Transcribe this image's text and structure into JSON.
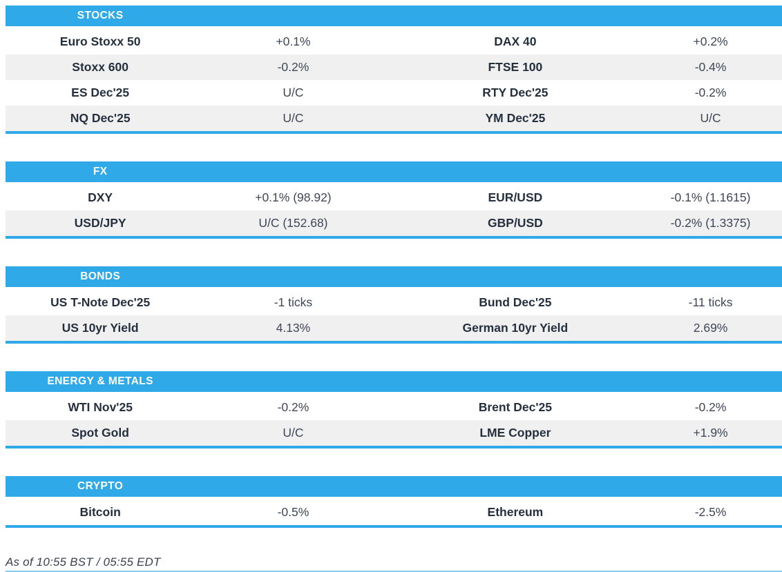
{
  "chart_data": {
    "type": "table",
    "columns": [
      "instrument",
      "change",
      "instrument",
      "change"
    ],
    "sections": [
      {
        "id": "stocks",
        "title": "STOCKS",
        "rows": [
          [
            "Euro Stoxx 50",
            "+0.1%",
            "DAX 40",
            "+0.2%"
          ],
          [
            "Stoxx 600",
            "-0.2%",
            "FTSE 100",
            "-0.4%"
          ],
          [
            "ES Dec'25",
            "U/C",
            "RTY Dec'25",
            "-0.2%"
          ],
          [
            "NQ Dec'25",
            "U/C",
            "YM Dec'25",
            "U/C"
          ]
        ]
      },
      {
        "id": "fx",
        "title": "FX",
        "rows": [
          [
            "DXY",
            "+0.1% (98.92)",
            "EUR/USD",
            "-0.1% (1.1615)"
          ],
          [
            "USD/JPY",
            "U/C (152.68)",
            "GBP/USD",
            "-0.2% (1.3375)"
          ]
        ]
      },
      {
        "id": "bonds",
        "title": "BONDS",
        "rows": [
          [
            "US T-Note Dec'25",
            "-1 ticks",
            "Bund Dec'25",
            "-11 ticks"
          ],
          [
            "US 10yr Yield",
            "4.13%",
            "German 10yr Yield",
            "2.69%"
          ]
        ]
      },
      {
        "id": "energy-metals",
        "title": "ENERGY & METALS",
        "rows": [
          [
            "WTI Nov'25",
            "-0.2%",
            "Brent Dec'25",
            "-0.2%"
          ],
          [
            "Spot Gold",
            "U/C",
            "LME Copper",
            "+1.9%"
          ]
        ]
      },
      {
        "id": "crypto",
        "title": "CRYPTO",
        "rows": [
          [
            "Bitcoin",
            "-0.5%",
            "Ethereum",
            "-2.5%"
          ]
        ]
      }
    ],
    "as_of": "As of 10:55 BST / 05:55 EDT"
  },
  "colors": {
    "accent": "#2FA9E8",
    "row_stripe": "#F0F0F1",
    "header_text": "#FFFFFF",
    "name_text": "#25303E",
    "value_text": "#3E4756"
  }
}
